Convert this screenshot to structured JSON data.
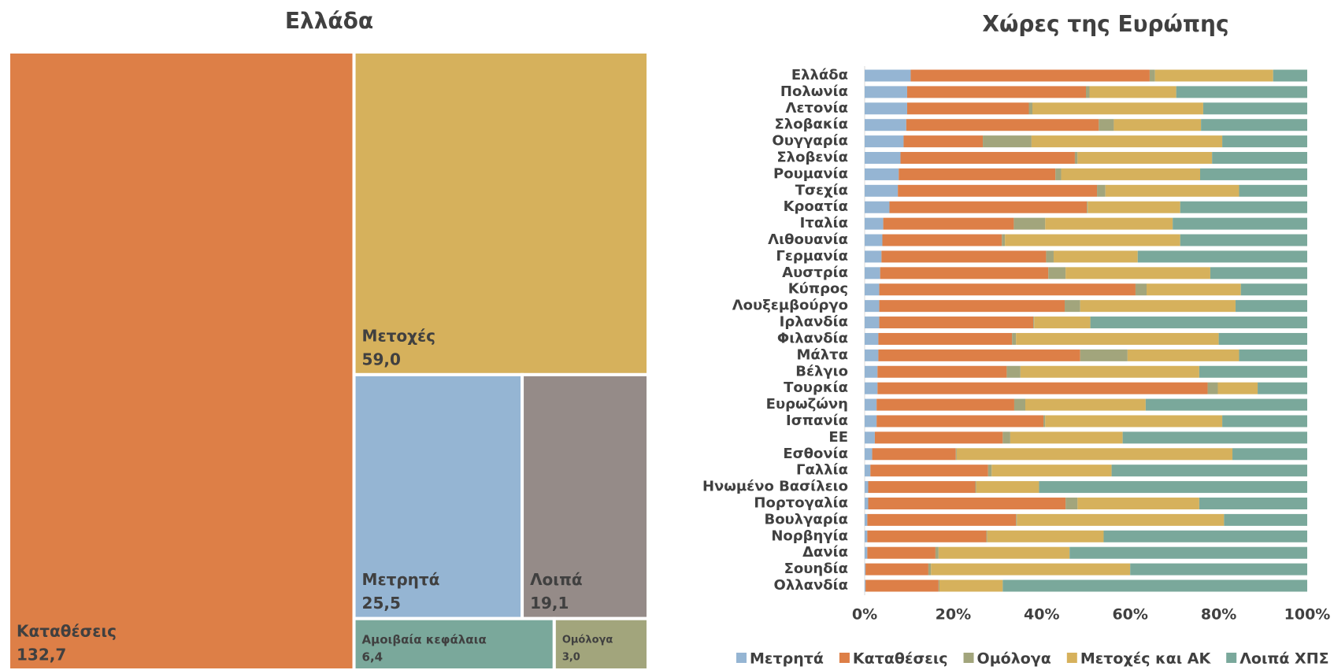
{
  "chart_data": [
    {
      "type": "treemap",
      "title": "Ελλάδα",
      "categories": [
        "Καταθέσεις",
        "Μετοχές",
        "Μετρητά",
        "Λοιπά",
        "Αμοιβαία κεφάλαια",
        "Ομόλογα"
      ],
      "values": [
        132.7,
        59.0,
        25.5,
        19.1,
        6.4,
        3.0
      ],
      "value_labels": [
        "132,7",
        "59,0",
        "25,5",
        "19,1",
        "6,4",
        "3,0"
      ],
      "colors": [
        "#dd7f47",
        "#d6b15c",
        "#95b5d3",
        "#958b88",
        "#7aa89b",
        "#a2a57c"
      ]
    },
    {
      "type": "stacked_barh",
      "title": "Χώρες της Ευρώπης",
      "categories": [
        "Ελλάδα",
        "Πολωνία",
        "Λετονία",
        "Σλοβακία",
        "Ουγγαρία",
        "Σλοβενία",
        "Ρουμανία",
        "Τσεχία",
        "Κροατία",
        "Ιταλία",
        "Λιθουανία",
        "Γερμανία",
        "Αυστρία",
        "Κύπρος",
        "Λουξεμβούργο",
        "Ιρλανδία",
        "Φιλανδία",
        "Μάλτα",
        "Βέλγιο",
        "Τουρκία",
        "Ευρωζώνη",
        "Ισπανία",
        "ΕΕ",
        "Εσθονία",
        "Γαλλία",
        "Ηνωμένο Βασίλειο",
        "Πορτογαλία",
        "Βουλγαρία",
        "Νορβηγία",
        "Δανία",
        "Σουηδία",
        "Ολλανδία"
      ],
      "series": [
        {
          "name": "Μετρητά",
          "color": "#95b5d3",
          "values": [
            10.4,
            9.6,
            9.6,
            9.4,
            8.8,
            8.1,
            7.7,
            7.5,
            5.6,
            4.2,
            4.0,
            3.8,
            3.5,
            3.3,
            3.3,
            3.3,
            3.1,
            3.1,
            2.9,
            2.9,
            2.7,
            2.7,
            2.3,
            1.7,
            1.3,
            0.8,
            0.8,
            0.6,
            0.6,
            0.6,
            0.2,
            0.2
          ]
        },
        {
          "name": "Καταθέσεις",
          "color": "#dd7f47",
          "values": [
            54.0,
            40.4,
            27.5,
            43.5,
            17.9,
            39.4,
            35.4,
            45.0,
            44.6,
            29.5,
            27.0,
            37.2,
            38.0,
            57.9,
            41.9,
            34.8,
            30.2,
            45.6,
            29.2,
            74.6,
            31.1,
            37.7,
            28.9,
            18.9,
            26.6,
            24.2,
            44.6,
            33.6,
            26.9,
            15.4,
            14.2,
            16.5
          ]
        },
        {
          "name": "Ομόλογα",
          "color": "#a2a57c",
          "values": [
            1.2,
            0.8,
            0.8,
            3.4,
            11.0,
            0.6,
            1.3,
            1.9,
            0.2,
            7.1,
            0.7,
            1.7,
            3.9,
            2.5,
            3.5,
            0.2,
            0.9,
            10.7,
            3.1,
            2.3,
            2.5,
            0.4,
            1.7,
            0.2,
            0.8,
            0.2,
            2.7,
            0.2,
            0.2,
            0.7,
            0.6,
            0.2
          ]
        },
        {
          "name": "Μετοχές και ΑΚ",
          "color": "#d6b15c",
          "values": [
            26.7,
            19.6,
            38.6,
            19.7,
            43.1,
            30.4,
            31.4,
            30.2,
            20.9,
            28.8,
            39.6,
            19.0,
            32.7,
            21.3,
            35.1,
            12.7,
            45.8,
            25.2,
            40.4,
            9.0,
            27.2,
            40.0,
            25.4,
            62.3,
            27.1,
            14.2,
            27.5,
            46.8,
            26.3,
            29.6,
            45.0,
            14.3
          ]
        },
        {
          "name": "Λοιπά ΧΠΣ",
          "color": "#7aa89b",
          "values": [
            7.7,
            29.6,
            23.5,
            24.0,
            19.2,
            21.5,
            24.2,
            15.4,
            28.7,
            30.4,
            28.7,
            38.3,
            21.9,
            15.0,
            16.2,
            49.0,
            20.0,
            15.4,
            24.4,
            11.2,
            36.5,
            19.2,
            41.7,
            16.9,
            44.2,
            60.6,
            24.4,
            18.8,
            46.0,
            53.7,
            40.0,
            68.8
          ]
        }
      ],
      "xlim": [
        0,
        100
      ],
      "xticks": [
        {
          "value": 0,
          "label": "0%"
        },
        {
          "value": 20,
          "label": "20%"
        },
        {
          "value": 40,
          "label": "40%"
        },
        {
          "value": 60,
          "label": "60%"
        },
        {
          "value": 80,
          "label": "80%"
        },
        {
          "value": 100,
          "label": "100%"
        }
      ],
      "legend": "bottom"
    }
  ]
}
